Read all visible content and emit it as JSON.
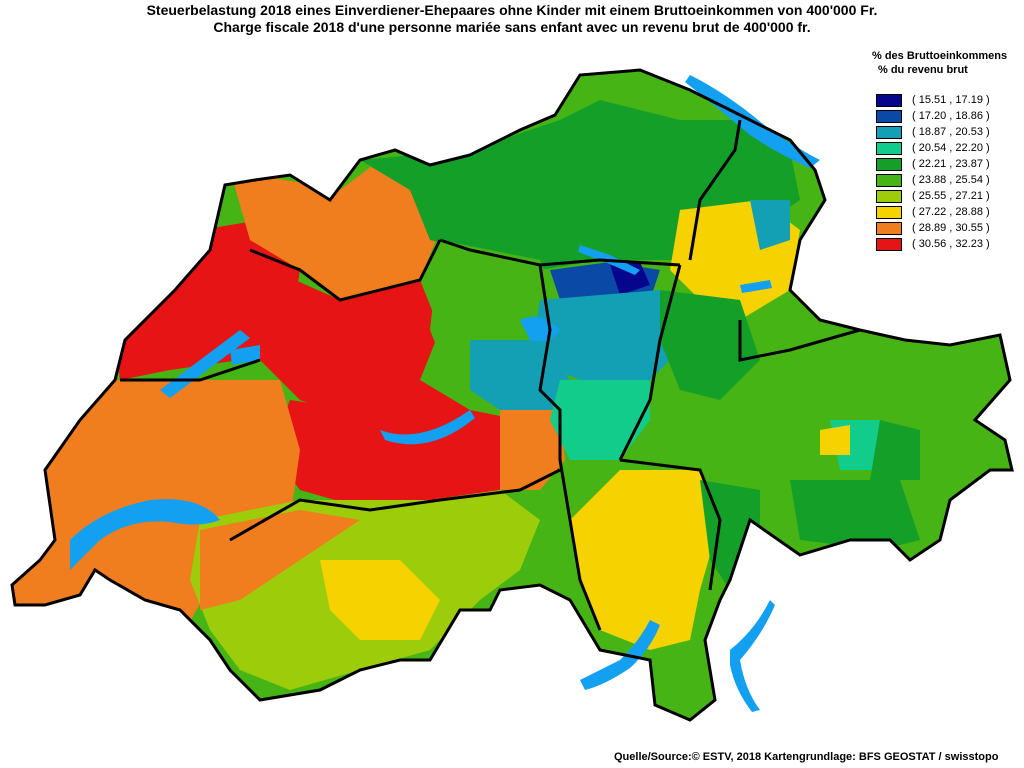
{
  "title": {
    "line1": "Steuerbelastung 2018 eines Einverdiener-Ehepaares ohne Kinder mit einem Bruttoeinkommen von 400'000 Fr.",
    "line2": "Charge fiscale 2018 d'une personne mariée sans enfant avec un revenu brut de 400'000 fr."
  },
  "legend": {
    "heading1": "% des Bruttoeinkommens",
    "heading2": "% du revenu brut",
    "items": [
      {
        "label": "( 15.51 , 17.19 )",
        "color": "#06068c"
      },
      {
        "label": "( 17.20 , 18.86 )",
        "color": "#0a4aa6"
      },
      {
        "label": "( 18.87 , 20.53 )",
        "color": "#14a0b4"
      },
      {
        "label": "( 20.54 , 22.20 )",
        "color": "#12cc8c"
      },
      {
        "label": "( 22.21 , 23.87 )",
        "color": "#14a028"
      },
      {
        "label": "( 23.88 , 25.54 )",
        "color": "#46b414"
      },
      {
        "label": "( 25.55 , 27.21 )",
        "color": "#9ccc0a"
      },
      {
        "label": "( 27.22 , 28.88 )",
        "color": "#f5d200"
      },
      {
        "label": "( 28.89 , 30.55 )",
        "color": "#f07d1e"
      },
      {
        "label": "( 30.56 , 32.23 )",
        "color": "#e61414"
      }
    ]
  },
  "source": "Quelle/Source:© ESTV, 2018 Kartengrundlage: BFS GEOSTAT / swisstopo",
  "colors": {
    "lake": "#14a0f0",
    "border": "#000000",
    "background": "#ffffff"
  }
}
